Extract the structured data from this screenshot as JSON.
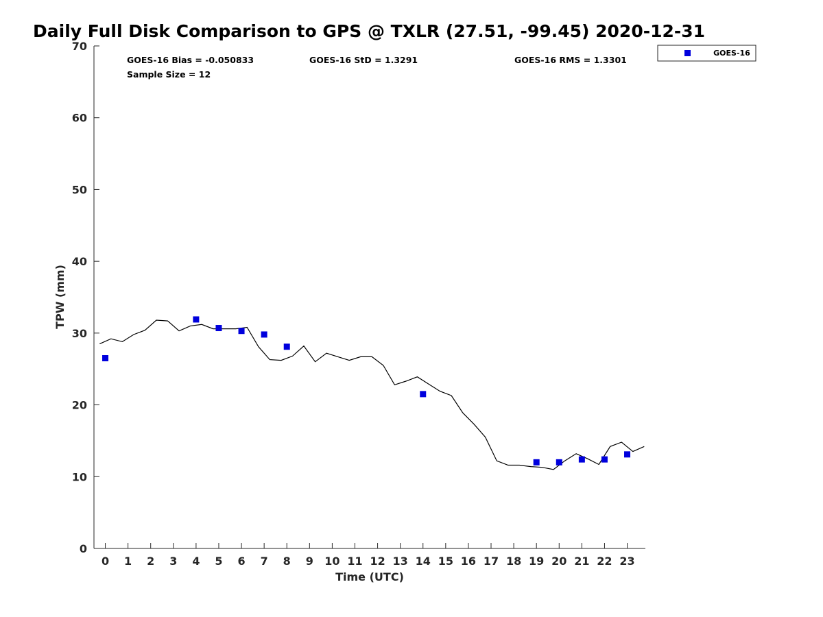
{
  "chart_data": {
    "type": "scatter",
    "title": "Daily Full Disk Comparison to GPS @ TXLR (27.51, -99.45) 2020-12-31",
    "xlabel": "Time (UTC)",
    "ylabel": "TPW (mm)",
    "xlim": [
      -0.5,
      23.8
    ],
    "ylim": [
      0,
      70
    ],
    "x_ticks": [
      0,
      1,
      2,
      3,
      4,
      5,
      6,
      7,
      8,
      9,
      10,
      11,
      12,
      13,
      14,
      15,
      16,
      17,
      18,
      19,
      20,
      21,
      22,
      23
    ],
    "y_ticks": [
      0,
      10,
      20,
      30,
      40,
      50,
      60,
      70
    ],
    "grid": false,
    "legend_placement": "top-right (outside)",
    "stats": {
      "bias": "GOES-16 Bias = -0.050833",
      "std": "GOES-16 StD = 1.3291",
      "rms": "GOES-16 RMS = 1.3301",
      "sample_size": "Sample Size = 12"
    },
    "series": [
      {
        "name": "GOES-16",
        "kind": "scatter",
        "marker": "square",
        "color": "#0000dd",
        "x": [
          0,
          4,
          5,
          6,
          7,
          8,
          14,
          19,
          20,
          21,
          22,
          23
        ],
        "y": [
          26.5,
          31.9,
          30.7,
          30.3,
          29.8,
          28.1,
          21.5,
          12.0,
          12.0,
          12.4,
          12.4,
          13.1
        ]
      },
      {
        "kind": "line",
        "color": "#000000",
        "x": [
          -0.25,
          0.25,
          0.75,
          1.25,
          1.75,
          2.25,
          2.75,
          3.25,
          3.75,
          4.25,
          4.75,
          5.25,
          5.75,
          6.25,
          6.75,
          7.25,
          7.75,
          8.25,
          8.75,
          9.25,
          9.75,
          10.25,
          10.75,
          11.25,
          11.75,
          12.25,
          12.75,
          13.25,
          13.75,
          14.25,
          14.75,
          15.25,
          15.75,
          16.25,
          16.75,
          17.25,
          17.75,
          18.25,
          18.75,
          19.25,
          19.75,
          20.25,
          20.75,
          21.25,
          21.75,
          22.25,
          22.75,
          23.25,
          23.75
        ],
        "y": [
          28.5,
          29.2,
          28.8,
          29.8,
          30.4,
          31.8,
          31.7,
          30.3,
          31.0,
          31.2,
          30.6,
          30.6,
          30.6,
          30.8,
          28.1,
          26.3,
          26.2,
          26.8,
          28.2,
          26.0,
          27.2,
          26.7,
          26.2,
          26.7,
          26.7,
          25.5,
          22.8,
          23.3,
          23.9,
          22.9,
          21.9,
          21.3,
          18.9,
          17.3,
          15.5,
          12.2,
          11.6,
          11.6,
          11.4,
          11.3,
          11.0,
          12.2,
          13.2,
          12.5,
          11.7,
          14.2,
          14.8,
          13.5,
          14.2
        ]
      }
    ]
  }
}
